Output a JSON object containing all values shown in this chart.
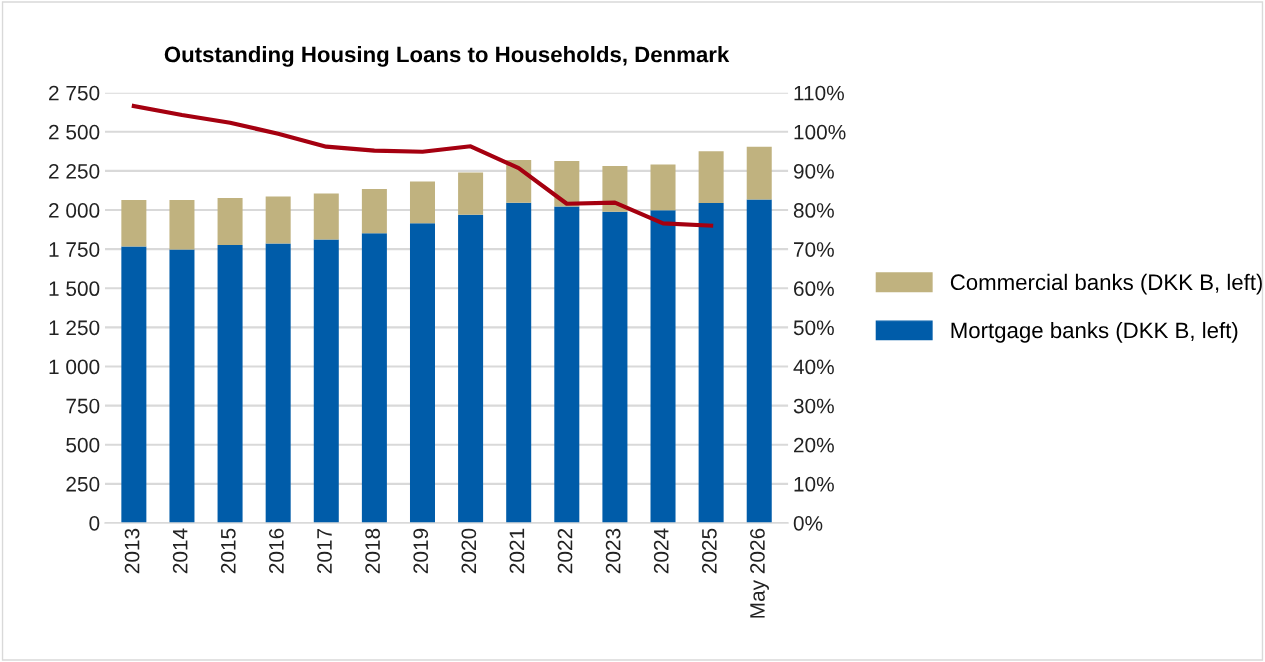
{
  "chart_data": {
    "type": "bar",
    "title": "Outstanding Housing Loans to Households, Denmark",
    "categories": [
      "2013",
      "2014",
      "2015",
      "2016",
      "2017",
      "2018",
      "2019",
      "2020",
      "2021",
      "2022",
      "2023",
      "2024",
      "2025",
      "May 2026"
    ],
    "stacked": true,
    "series": [
      {
        "name": "Mortgage banks (DKK B, left)",
        "color": "#005ca9",
        "values": [
          1767,
          1748,
          1776,
          1786,
          1812,
          1851,
          1915,
          1970,
          2047,
          2023,
          1989,
          1998,
          2045,
          2068
        ]
      },
      {
        "name": "Commercial banks (DKK B, left)",
        "color": "#c0b27f",
        "values": [
          297,
          316,
          301,
          301,
          294,
          283,
          268,
          270,
          272,
          290,
          292,
          293,
          331,
          337
        ]
      },
      {
        "type": "line",
        "axis": "y2",
        "color": "#a50010",
        "values": [
          106.6,
          104.3,
          102.3,
          99.5,
          96.2,
          95.2,
          94.9,
          96.3,
          90.7,
          81.6,
          81.9,
          76.6,
          76.0,
          null
        ]
      }
    ],
    "ylim": [
      0,
      2750
    ],
    "yticks": [
      0,
      250,
      500,
      750,
      {
        "value": 1000,
        "label": "1 000"
      },
      {
        "value": 1250,
        "label": "1 250"
      },
      {
        "value": 1500,
        "label": "1 500"
      },
      {
        "value": 1750,
        "label": "1 750"
      },
      {
        "value": 2000,
        "label": "2 000"
      },
      {
        "value": 2250,
        "label": "2 250"
      },
      {
        "value": 2500,
        "label": "2 500"
      },
      {
        "value": 2750,
        "label": "2 750"
      }
    ],
    "y2lim": [
      0,
      110
    ],
    "y2ticks": [
      {
        "value": 0,
        "label": "0%"
      },
      {
        "value": 10,
        "label": "10%"
      },
      {
        "value": 20,
        "label": "20%"
      },
      {
        "value": 30,
        "label": "30%"
      },
      {
        "value": 40,
        "label": "40%"
      },
      {
        "value": 50,
        "label": "50%"
      },
      {
        "value": 60,
        "label": "60%"
      },
      {
        "value": 70,
        "label": "70%"
      },
      {
        "value": 80,
        "label": "80%"
      },
      {
        "value": 90,
        "label": "90%"
      },
      {
        "value": 100,
        "label": "100%"
      },
      {
        "value": 110,
        "label": "110%"
      }
    ],
    "grid": "y",
    "legend": "right"
  }
}
